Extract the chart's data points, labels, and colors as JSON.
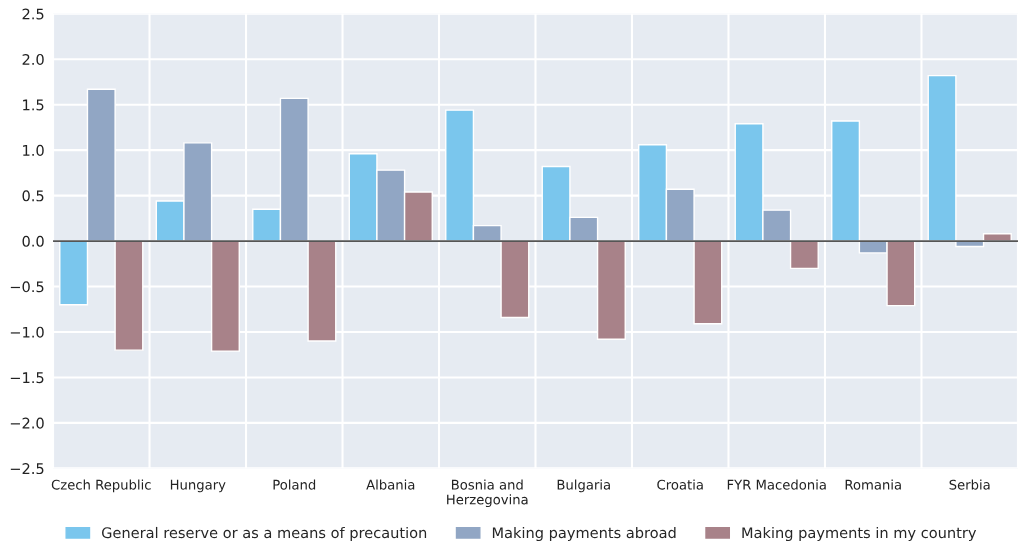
{
  "chart_data": {
    "type": "bar",
    "categories": [
      "Czech Republic",
      "Hungary",
      "Poland",
      "Albania",
      "Bosnia and\nHerzegovina",
      "Bulgaria",
      "Croatia",
      "FYR Macedonia",
      "Romania",
      "Serbia"
    ],
    "series": [
      {
        "name": "General reserve or as a means of precaution",
        "color": "#7ac6ed",
        "values": [
          -0.7,
          0.44,
          0.35,
          0.96,
          1.44,
          0.82,
          1.06,
          1.29,
          1.32,
          1.82
        ]
      },
      {
        "name": "Making payments abroad",
        "color": "#91a6c4",
        "values": [
          1.67,
          1.08,
          1.57,
          0.78,
          0.17,
          0.26,
          0.57,
          0.34,
          -0.13,
          -0.06
        ]
      },
      {
        "name": "Making payments in my country",
        "color": "#a88289",
        "values": [
          -1.2,
          -1.21,
          -1.1,
          0.54,
          -0.84,
          -1.08,
          -0.91,
          -0.3,
          -0.71,
          0.08
        ]
      }
    ],
    "ylim": [
      -2.5,
      2.5
    ],
    "yticks": [
      {
        "value": -2.5,
        "label": "−2.5"
      },
      {
        "value": -2.0,
        "label": "−2.0"
      },
      {
        "value": -1.5,
        "label": "−1.5"
      },
      {
        "value": -1.0,
        "label": "−1.0"
      },
      {
        "value": -0.5,
        "label": "−0.5"
      },
      {
        "value": 0,
        "label": "0.0"
      },
      0.5,
      {
        "value": 1,
        "label": "1.0"
      },
      1.5,
      {
        "value": 2,
        "label": "2.0"
      },
      2.5
    ],
    "grid": true,
    "legend": "bottom"
  }
}
